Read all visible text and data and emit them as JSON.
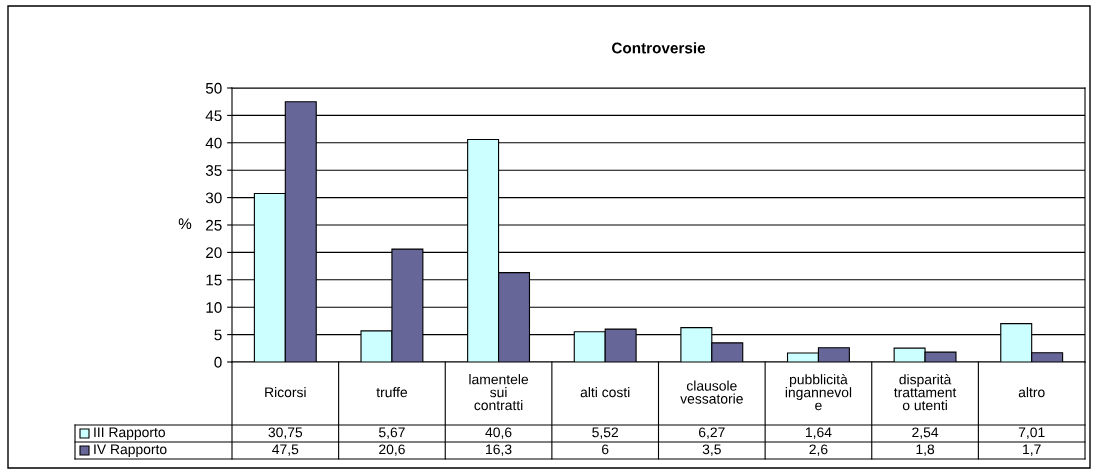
{
  "chart_data": {
    "type": "bar",
    "title": "Controversie",
    "ylabel": "%",
    "categories": [
      "Ricorsi",
      "truffe",
      "lamentele sui contratti",
      "alti costi",
      "clausole vessatorie",
      "pubblicità ingannevole",
      "disparità trattamento utenti",
      "altro"
    ],
    "series": [
      {
        "name": "III Rapporto",
        "color": "#ccffff",
        "values": [
          30.75,
          5.67,
          40.6,
          5.52,
          6.27,
          1.64,
          2.54,
          7.01
        ],
        "value_labels": [
          "30,75",
          "5,67",
          "40,6",
          "5,52",
          "6,27",
          "1,64",
          "2,54",
          "7,01"
        ]
      },
      {
        "name": "IV Rapporto",
        "color": "#666699",
        "values": [
          47.5,
          20.6,
          16.3,
          6,
          3.5,
          2.6,
          1.8,
          1.7
        ],
        "value_labels": [
          "47,5",
          "20,6",
          "16,3",
          "6",
          "3,5",
          "2,6",
          "1,8",
          "1,7"
        ]
      }
    ],
    "ylim": [
      0,
      50
    ],
    "yticks": [
      0,
      5,
      10,
      15,
      20,
      25,
      30,
      35,
      40,
      45,
      50
    ],
    "grid": "y",
    "legend": "bottom"
  }
}
